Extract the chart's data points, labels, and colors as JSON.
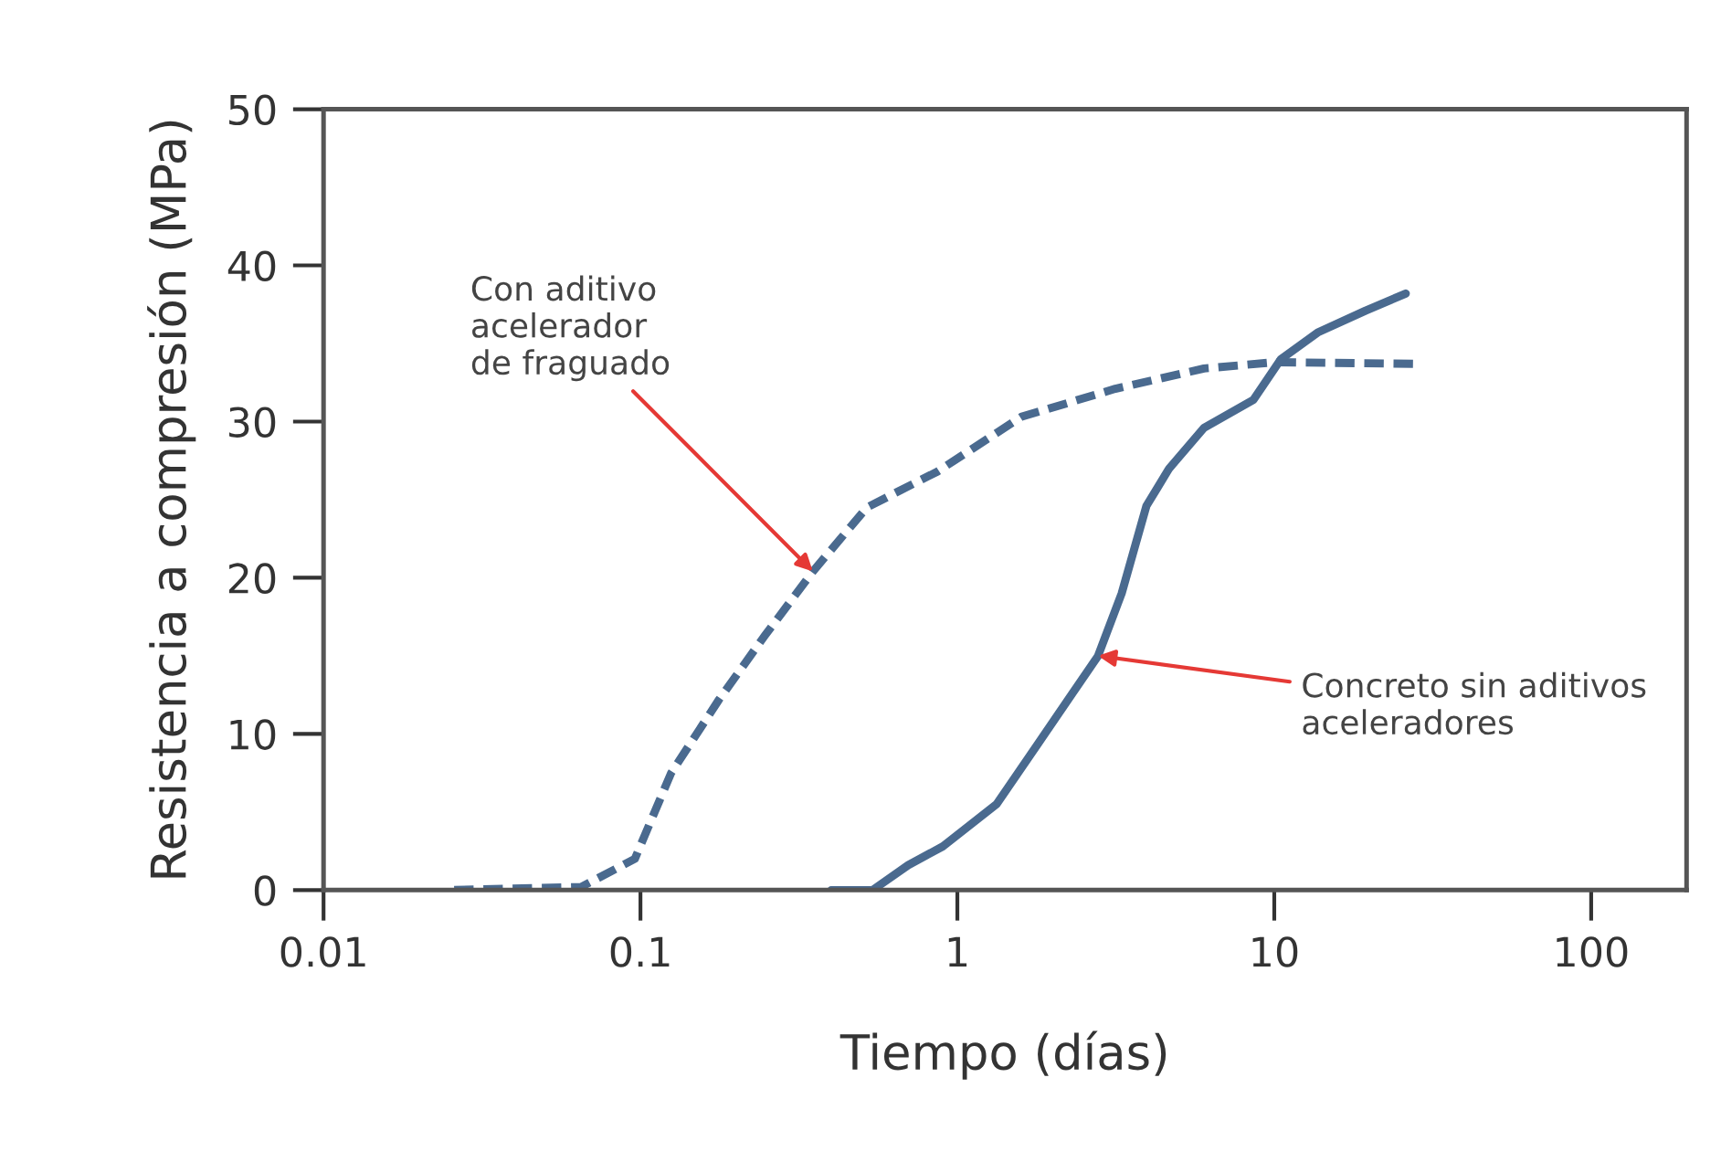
{
  "chart_data": {
    "type": "line",
    "xlabel": "Tiempo (días)",
    "ylabel": "Resistencia a compresión (MPa)",
    "log": "x",
    "xlim": [
      0.01,
      200
    ],
    "xticks": [
      0.01,
      0.1,
      1,
      10,
      100
    ],
    "ylim": [
      0,
      50
    ],
    "yticks": [
      0,
      10,
      20,
      30,
      40,
      50
    ],
    "grid": false,
    "legend": false,
    "series": [
      {
        "color": "#4a6a8f",
        "line_style": "dashed",
        "x": [
          0.025,
          0.065,
          0.096,
          0.125,
          0.177,
          0.247,
          0.35,
          0.518,
          0.865,
          1.59,
          3.15,
          6.0,
          10,
          27.4
        ],
        "values": [
          0,
          0.2,
          2,
          7.5,
          12.2,
          16.3,
          20.4,
          24.5,
          26.8,
          30.3,
          32.1,
          33.4,
          33.8,
          33.7
        ]
      },
      {
        "color": "#4a6a8f",
        "line_style": "solid",
        "x": [
          0.4,
          0.54,
          0.7,
          0.9,
          1.33,
          1.8,
          2.78,
          3.3,
          3.95,
          4.66,
          6.0,
          8.6,
          10.5,
          13.7,
          19.4,
          26
        ],
        "values": [
          0,
          0,
          1.6,
          2.8,
          5.5,
          9.4,
          15,
          19,
          24.6,
          27,
          29.6,
          31.4,
          34,
          35.7,
          37.1,
          38.2
        ]
      }
    ],
    "annotations": [
      {
        "text": "Con aditivo\nacelerador\nde fraguado",
        "x": 0.35,
        "y": 20.4
      },
      {
        "text": "Concreto sin aditivos\naceleradores",
        "x": 2.78,
        "y": 15
      }
    ]
  }
}
